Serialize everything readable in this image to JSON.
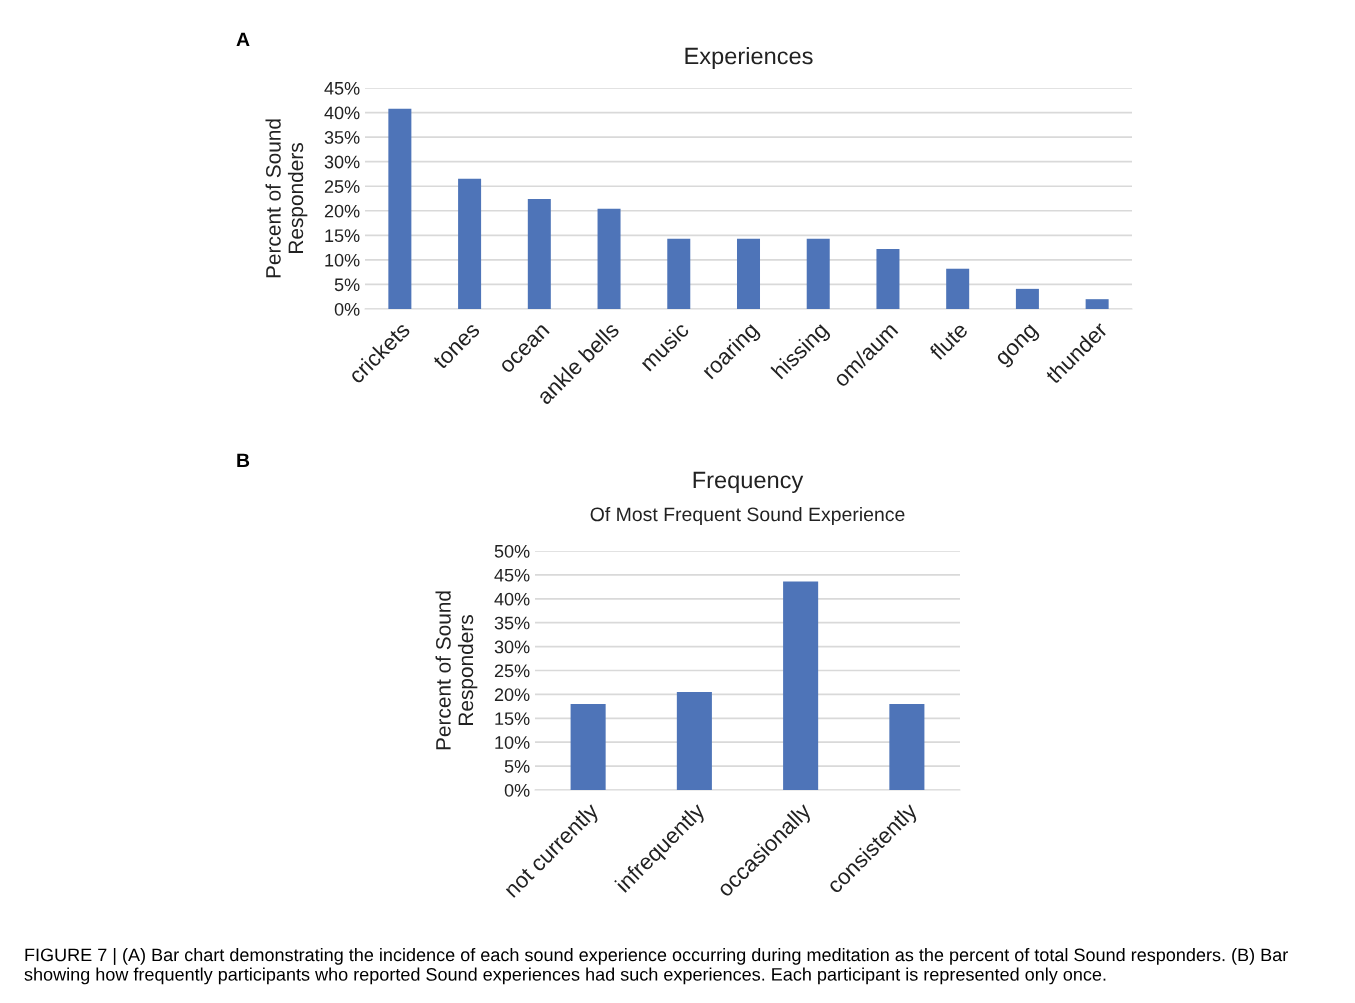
{
  "chart_data": [
    {
      "type": "bar",
      "title": "Experiences",
      "ylabel": "Percent of Sound\nResponders",
      "categories": [
        "crickets",
        "tones",
        "ocean",
        "ankle bells",
        "music",
        "roaring",
        "hissing",
        "om/aum",
        "flute",
        "gong",
        "thunder"
      ],
      "values": [
        40.8,
        26.5,
        22.4,
        20.4,
        14.3,
        14.3,
        14.3,
        12.2,
        8.2,
        4.1,
        2.0
      ],
      "color": "#4e74b8",
      "ylim": [
        0,
        45
      ],
      "yticks": [
        {
          "value": 0,
          "label": "0%"
        },
        {
          "value": 5,
          "label": "5%"
        },
        {
          "value": 10,
          "label": "10%"
        },
        {
          "value": 15,
          "label": "15%"
        },
        {
          "value": 20,
          "label": "20%"
        },
        {
          "value": 25,
          "label": "25%"
        },
        {
          "value": 30,
          "label": "30%"
        },
        {
          "value": 35,
          "label": "35%"
        },
        {
          "value": 40,
          "label": "40%"
        },
        {
          "value": 45,
          "label": "45%"
        }
      ],
      "grid": "y",
      "annotations": [
        "A"
      ]
    },
    {
      "type": "bar",
      "title": "Frequency",
      "subtitle": "Of Most Frequent Sound Experience",
      "ylabel": "Percent of Sound\nResponders",
      "categories": [
        "not currently",
        "infrequently",
        "occasionally",
        "consistently"
      ],
      "values": [
        18.0,
        20.5,
        43.6,
        18.0
      ],
      "color": "#4e74b8",
      "ylim": [
        0,
        50
      ],
      "yticks": [
        {
          "value": 0,
          "label": "0%"
        },
        {
          "value": 5,
          "label": "5%"
        },
        {
          "value": 10,
          "label": "10%"
        },
        {
          "value": 15,
          "label": "15%"
        },
        {
          "value": 20,
          "label": "20%"
        },
        {
          "value": 25,
          "label": "25%"
        },
        {
          "value": 30,
          "label": "30%"
        },
        {
          "value": 35,
          "label": "35%"
        },
        {
          "value": 40,
          "label": "40%"
        },
        {
          "value": 45,
          "label": "45%"
        },
        {
          "value": 50,
          "label": "50%"
        }
      ],
      "grid": "y",
      "annotations": [
        "B",
        "FIGURE 7 | (A) Bar chart demonstrating the incidence of each sound experience occurring during meditation as the percent of total Sound responders. (B) Bar showing how frequently participants who reported Sound experiences had such experiences. Each participant is represented only once."
      ]
    }
  ]
}
